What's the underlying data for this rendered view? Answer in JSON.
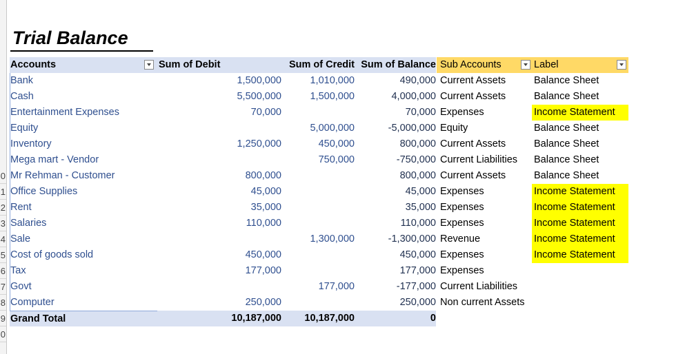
{
  "title": "Trial Balance",
  "headers": {
    "accounts": "Accounts",
    "debit": "Sum of Debit",
    "credit": "Sum of Credit",
    "balance": "Sum of Balance",
    "sub_accounts": "Sub Accounts",
    "label": "Label"
  },
  "row_numbers": [
    "0",
    "1",
    "2",
    "3",
    "4",
    "5",
    "6",
    "7",
    "8",
    "9",
    "0"
  ],
  "rows": [
    {
      "account": "Bank",
      "debit": "1,500,000",
      "credit": "1,010,000",
      "balance": "490,000",
      "sub": "Current Assets",
      "label": "Balance Sheet",
      "highlight": false
    },
    {
      "account": "Cash",
      "debit": "5,500,000",
      "credit": "1,500,000",
      "balance": "4,000,000",
      "sub": "Current Assets",
      "label": "Balance Sheet",
      "highlight": false
    },
    {
      "account": "Entertainment Expenses",
      "debit": "70,000",
      "credit": "",
      "balance": "70,000",
      "sub": "Expenses",
      "label": "Income Statement",
      "highlight": true
    },
    {
      "account": "Equity",
      "debit": "",
      "credit": "5,000,000",
      "balance": "-5,000,000",
      "sub": "Equity",
      "label": "Balance Sheet",
      "highlight": false
    },
    {
      "account": "Inventory",
      "debit": "1,250,000",
      "credit": "450,000",
      "balance": "800,000",
      "sub": "Current Assets",
      "label": "Balance Sheet",
      "highlight": false
    },
    {
      "account": "Mega mart - Vendor",
      "debit": "",
      "credit": "750,000",
      "balance": "-750,000",
      "sub": "Current Liabilities",
      "label": "Balance Sheet",
      "highlight": false
    },
    {
      "account": "Mr Rehman - Customer",
      "debit": "800,000",
      "credit": "",
      "balance": "800,000",
      "sub": "Current Assets",
      "label": "Balance Sheet",
      "highlight": false
    },
    {
      "account": "Office Supplies",
      "debit": "45,000",
      "credit": "",
      "balance": "45,000",
      "sub": "Expenses",
      "label": "Income Statement",
      "highlight": true
    },
    {
      "account": "Rent",
      "debit": "35,000",
      "credit": "",
      "balance": "35,000",
      "sub": "Expenses",
      "label": "Income Statement",
      "highlight": true
    },
    {
      "account": "Salaries",
      "debit": "110,000",
      "credit": "",
      "balance": "110,000",
      "sub": "Expenses",
      "label": "Income Statement",
      "highlight": true
    },
    {
      "account": "Sale",
      "debit": "",
      "credit": "1,300,000",
      "balance": "-1,300,000",
      "sub": "Revenue",
      "label": "Income Statement",
      "highlight": true
    },
    {
      "account": "Cost of goods sold",
      "debit": "450,000",
      "credit": "",
      "balance": "450,000",
      "sub": "Expenses",
      "label": "Income Statement",
      "highlight": true
    },
    {
      "account": "Tax",
      "debit": "177,000",
      "credit": "",
      "balance": "177,000",
      "sub": "Expenses",
      "label": "",
      "highlight": false
    },
    {
      "account": "Govt",
      "debit": "",
      "credit": "177,000",
      "balance": "-177,000",
      "sub": "Current Liabilities",
      "label": "",
      "highlight": false
    },
    {
      "account": "Computer",
      "debit": "250,000",
      "credit": "",
      "balance": "250,000",
      "sub": "Non current Assets",
      "label": "",
      "highlight": false
    }
  ],
  "total": {
    "account": "Grand Total",
    "debit": "10,187,000",
    "credit": "10,187,000",
    "balance": "0"
  },
  "colors": {
    "header_blue": "#d9e1f2",
    "header_gold": "#ffd966",
    "highlight": "#ffff00",
    "account_text": "#2f4f8f"
  }
}
